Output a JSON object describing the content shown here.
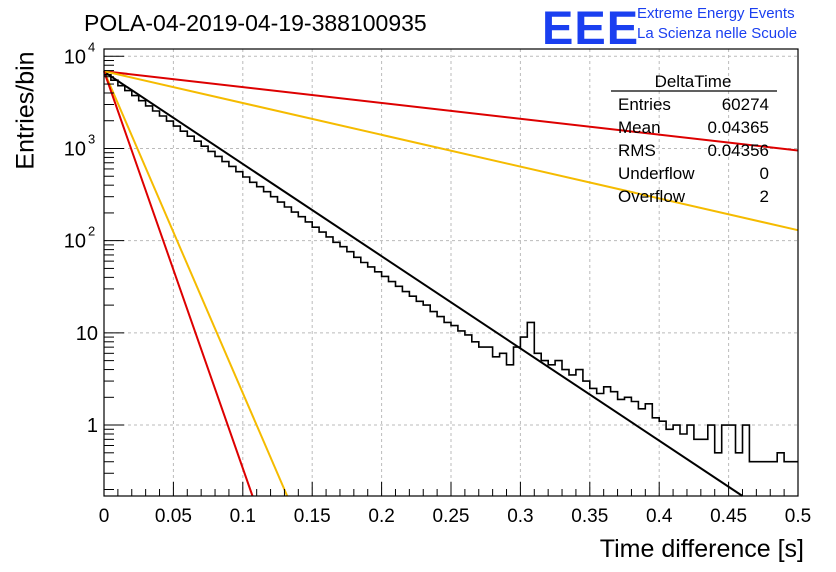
{
  "header": {
    "title": "POLA-04-2019-04-19-388100935",
    "logo_text": "EEE",
    "logo_line1": "Extreme Energy Events",
    "logo_line2": "La Scienza nelle Scuole",
    "logo_color": "#1a3ff0"
  },
  "stats_box": {
    "title": "DeltaTime",
    "rows": [
      {
        "label": "Entries",
        "value": "60274"
      },
      {
        "label": "Mean",
        "value": "0.04365"
      },
      {
        "label": "RMS",
        "value": "0.04356"
      },
      {
        "label": "Underflow",
        "value": "0"
      },
      {
        "label": "Overflow",
        "value": "2"
      }
    ]
  },
  "chart_data": {
    "type": "line",
    "xlabel": "Time difference [s]",
    "ylabel": "Entries/bin",
    "xlim": [
      0,
      0.5
    ],
    "ylim": [
      0.17,
      12000
    ],
    "yscale": "log",
    "grid": true,
    "x_ticks": [
      "0",
      "0.05",
      "0.1",
      "0.15",
      "0.2",
      "0.25",
      "0.3",
      "0.35",
      "0.4",
      "0.45",
      "0.5"
    ],
    "y_ticks": [
      {
        "value": 1,
        "label": "1"
      },
      {
        "value": 10,
        "label": "10"
      },
      {
        "value": 100,
        "label": "10",
        "exp": "2"
      },
      {
        "value": 1000,
        "label": "10",
        "exp": "3"
      },
      {
        "value": 10000,
        "label": "10",
        "exp": "4"
      }
    ],
    "histogram": {
      "color": "#000000",
      "bin_width": 0.005,
      "values": [
        6300,
        5500,
        4800,
        4250,
        3750,
        3300,
        2900,
        2550,
        2250,
        1980,
        1750,
        1540,
        1360,
        1200,
        1060,
        930,
        820,
        720,
        640,
        560,
        490,
        430,
        385,
        340,
        300,
        262,
        232,
        204,
        182,
        160,
        140,
        124,
        110,
        96,
        86,
        76,
        66,
        58,
        52,
        46,
        41,
        36,
        32,
        28,
        25,
        22,
        20,
        17,
        15,
        13,
        12,
        10.5,
        9.5,
        8,
        7,
        7,
        5.5,
        6,
        4.5,
        7,
        9,
        13,
        6,
        5,
        4.5,
        5,
        4,
        3.5,
        4,
        3,
        2.5,
        2.2,
        2.6,
        2.3,
        1.9,
        2,
        1.8,
        1.5,
        1.7,
        1.2,
        1.1,
        0.9,
        1,
        0.8,
        1,
        0.7,
        0.7,
        1,
        0.5,
        1,
        1,
        0.5,
        1,
        0.4,
        0.4,
        0.4,
        0.4,
        0.5,
        0.4,
        0.4
      ]
    },
    "series": [
      {
        "color": "#000000",
        "points": [
          [
            0,
            6800
          ],
          [
            0.46,
            0.17
          ]
        ]
      },
      {
        "color": "#dd0000",
        "points": [
          [
            0,
            6900
          ],
          [
            0.5,
            950
          ]
        ]
      },
      {
        "color": "#f5bb00",
        "points": [
          [
            0,
            6900
          ],
          [
            0.5,
            130
          ]
        ]
      },
      {
        "color": "#f5bb00",
        "points": [
          [
            0,
            6900
          ],
          [
            0.132,
            0.17
          ]
        ]
      },
      {
        "color": "#dd0000",
        "points": [
          [
            0,
            6900
          ],
          [
            0.107,
            0.17
          ]
        ]
      }
    ]
  }
}
